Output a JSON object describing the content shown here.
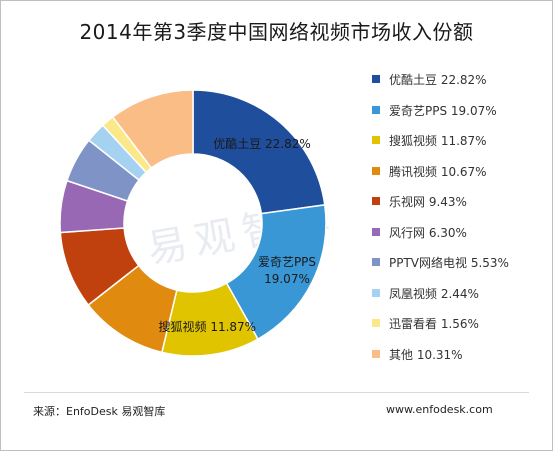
{
  "header": {
    "title": "2014年第3季度中国网络视频市场收入份额"
  },
  "footer": {
    "source": "来源：EnfoDesk 易观智库",
    "website": "www.enfodesk.com"
  },
  "watermark": "易观智库",
  "chart_data": {
    "type": "pie",
    "donut": true,
    "title": "2014年第3季度中国网络视频市场收入份额",
    "legend_position": "right",
    "categories": [
      "优酷土豆",
      "爱奇艺PPS",
      "搜狐视频",
      "腾讯视频",
      "乐视网",
      "风行网",
      "PPTV网络电视",
      "凤凰视频",
      "迅雷看看",
      "其他"
    ],
    "values": [
      22.82,
      19.07,
      11.87,
      10.67,
      9.43,
      6.3,
      5.53,
      2.44,
      1.56,
      10.31
    ],
    "value_labels": [
      "22.82%",
      "19.07%",
      "11.87%",
      "10.67%",
      "9.43%",
      "6.30%",
      "5.53%",
      "2.44%",
      "1.56%",
      "10.31%"
    ],
    "colors": [
      "#1f4e9c",
      "#3a97d6",
      "#e1c400",
      "#e08a0f",
      "#c0410d",
      "#9868b4",
      "#7f93c6",
      "#a5d2f0",
      "#fbe888",
      "#fbbd86"
    ],
    "slice_labels": [
      {
        "index": 0,
        "lines": [
          "优酷土豆  22.82%"
        ]
      },
      {
        "index": 1,
        "lines": [
          "爱奇艺PPS",
          "19.07%"
        ]
      },
      {
        "index": 2,
        "lines": [
          "搜狐视频  11.87%"
        ]
      }
    ]
  }
}
